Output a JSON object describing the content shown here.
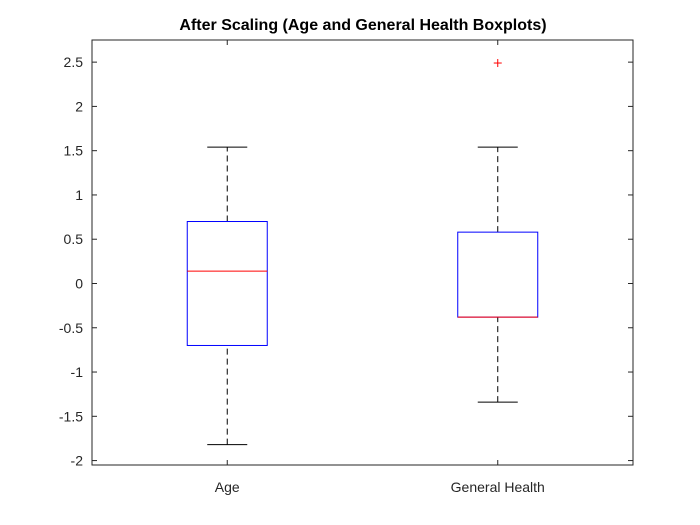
{
  "chart_data": {
    "type": "boxplot",
    "title": "After Scaling (Age and General Health Boxplots)",
    "xlabel": "",
    "ylabel": "",
    "categories": [
      "Age",
      "General Health"
    ],
    "ylim": [
      -2.05,
      2.75
    ],
    "yticks": [
      -2,
      -1.5,
      -1,
      -0.5,
      0,
      0.5,
      1,
      1.5,
      2,
      2.5
    ],
    "ytick_labels": [
      "-2",
      "-1.5",
      "-1",
      "-0.5",
      "0",
      "0.5",
      "1",
      "1.5",
      "2",
      "2.5"
    ],
    "grid": false,
    "boxes": [
      {
        "category": "Age",
        "whisker_low": -1.82,
        "q1": -0.7,
        "median": 0.14,
        "q3": 0.7,
        "whisker_high": 1.54,
        "outliers": []
      },
      {
        "category": "General Health",
        "whisker_low": -1.34,
        "q1": -0.38,
        "median": -0.38,
        "q3": 0.58,
        "whisker_high": 1.54,
        "outliers": [
          2.49
        ]
      }
    ],
    "colors": {
      "box": "#0000ff",
      "median": "#ff0000",
      "whisker": "#000000",
      "outlier": "#ff0000",
      "axis": "#262626"
    }
  }
}
